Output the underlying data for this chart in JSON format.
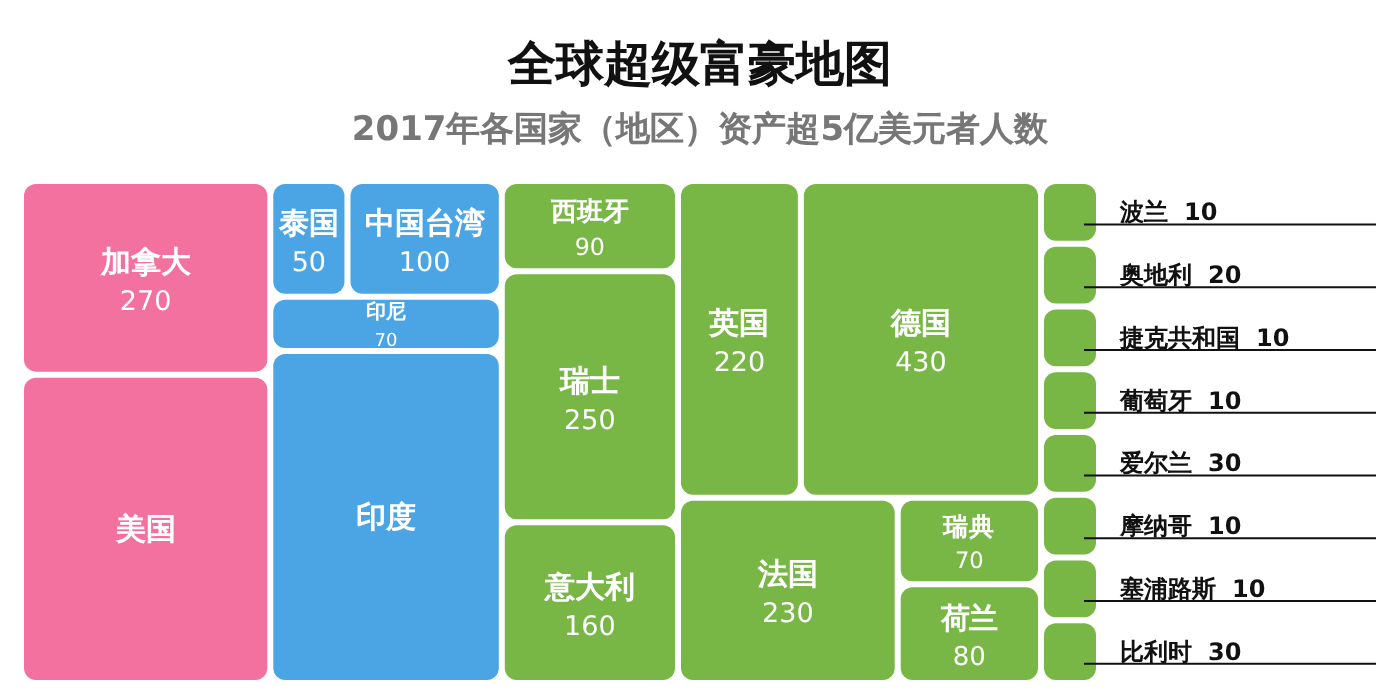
{
  "chart_data": {
    "type": "other",
    "title": "全球超级富豪地图",
    "subtitle": "2017年各国家（地区）资产超5亿美元者人数",
    "data_labels": true,
    "categories": [
      "加拿大",
      "美国",
      "泰国",
      "中国台湾",
      "印尼",
      "印度",
      "西班牙",
      "瑞士",
      "意大利",
      "英国",
      "德国",
      "法国",
      "波兰",
      "奥地利",
      "捷克共和国",
      "瑞典",
      "荷兰",
      "葡萄牙",
      "爱尔兰",
      "摩纳哥",
      "塞浦路斯",
      "比利时"
    ],
    "values": [
      270,
      null,
      50,
      100,
      70,
      null,
      90,
      250,
      160,
      220,
      430,
      230,
      10,
      20,
      10,
      70,
      80,
      10,
      30,
      10,
      10,
      30
    ],
    "colors": [
      "#f2719f",
      "#f2719f",
      "#4ba5e4",
      "#4ba5e4",
      "#4ba5e4",
      "#4ba5e4",
      "#78b646",
      "#78b646",
      "#78b646",
      "#78b646",
      "#78b646",
      "#78b646",
      "#78b646",
      "#78b646",
      "#78b646",
      "#78b646",
      "#78b646",
      "#78b646",
      "#78b646",
      "#78b646",
      "#78b646",
      "#78b646"
    ]
  }
}
